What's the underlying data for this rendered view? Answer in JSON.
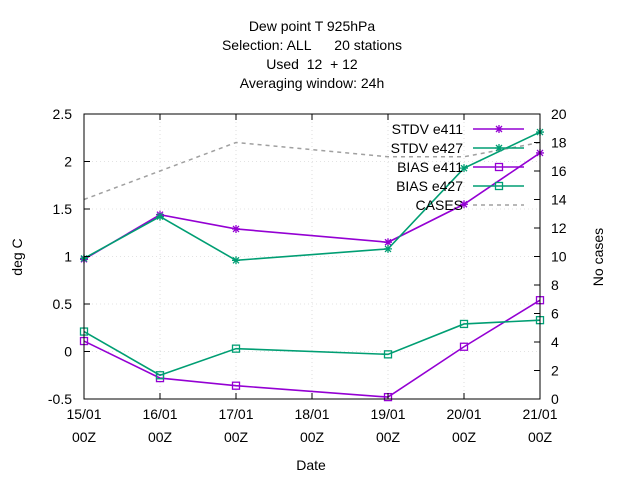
{
  "chart_data": {
    "type": "line",
    "title_lines": [
      "Dew point T 925hPa",
      "Selection: ALL      20 stations",
      "Used  12  + 12",
      "Averaging window: 24h"
    ],
    "xlabel": "Date",
    "ylabel": "deg C",
    "y2label": "No cases",
    "x_tick_labels": [
      {
        "date": "15/01",
        "time": "00Z"
      },
      {
        "date": "16/01",
        "time": "00Z"
      },
      {
        "date": "17/01",
        "time": "00Z"
      },
      {
        "date": "18/01",
        "time": "00Z"
      },
      {
        "date": "19/01",
        "time": "00Z"
      },
      {
        "date": "20/01",
        "time": "00Z"
      },
      {
        "date": "21/01",
        "time": "00Z"
      }
    ],
    "y_ticks": [
      "-0.5",
      "0",
      "0.5",
      "1",
      "1.5",
      "2",
      "2.5"
    ],
    "y2_ticks": [
      "0",
      "2",
      "4",
      "6",
      "8",
      "10",
      "12",
      "14",
      "16",
      "18",
      "20"
    ],
    "xlim": [
      0,
      6
    ],
    "ylim": [
      -0.5,
      2.5
    ],
    "y2lim": [
      0,
      20
    ],
    "legend_position": "top-right",
    "series": [
      {
        "name": "STDV e411",
        "axis": "y",
        "color": "#9400d3",
        "marker": "star",
        "dash": false,
        "x": [
          0,
          1,
          2,
          4,
          5,
          6
        ],
        "y": [
          0.97,
          1.44,
          1.29,
          1.15,
          1.55,
          2.09
        ]
      },
      {
        "name": "STDV e427",
        "axis": "y",
        "color": "#009e73",
        "marker": "star",
        "dash": false,
        "x": [
          0,
          1,
          2,
          4,
          5,
          6
        ],
        "y": [
          0.98,
          1.42,
          0.96,
          1.08,
          1.93,
          2.31
        ]
      },
      {
        "name": "BIAS e411",
        "axis": "y",
        "color": "#9400d3",
        "marker": "square",
        "dash": false,
        "x": [
          0,
          1,
          2,
          4,
          5,
          6
        ],
        "y": [
          0.11,
          -0.28,
          -0.36,
          -0.48,
          0.05,
          0.54
        ]
      },
      {
        "name": "BIAS e427",
        "axis": "y",
        "color": "#009e73",
        "marker": "square",
        "dash": false,
        "x": [
          0,
          1,
          2,
          4,
          5,
          6
        ],
        "y": [
          0.21,
          -0.25,
          0.03,
          -0.03,
          0.29,
          0.33
        ]
      },
      {
        "name": "CASES",
        "axis": "y2",
        "color": "#a0a0a0",
        "marker": "none",
        "dash": true,
        "x": [
          0,
          1,
          2,
          4,
          5,
          6
        ],
        "y": [
          14,
          16,
          18,
          17,
          17,
          18
        ]
      }
    ]
  }
}
